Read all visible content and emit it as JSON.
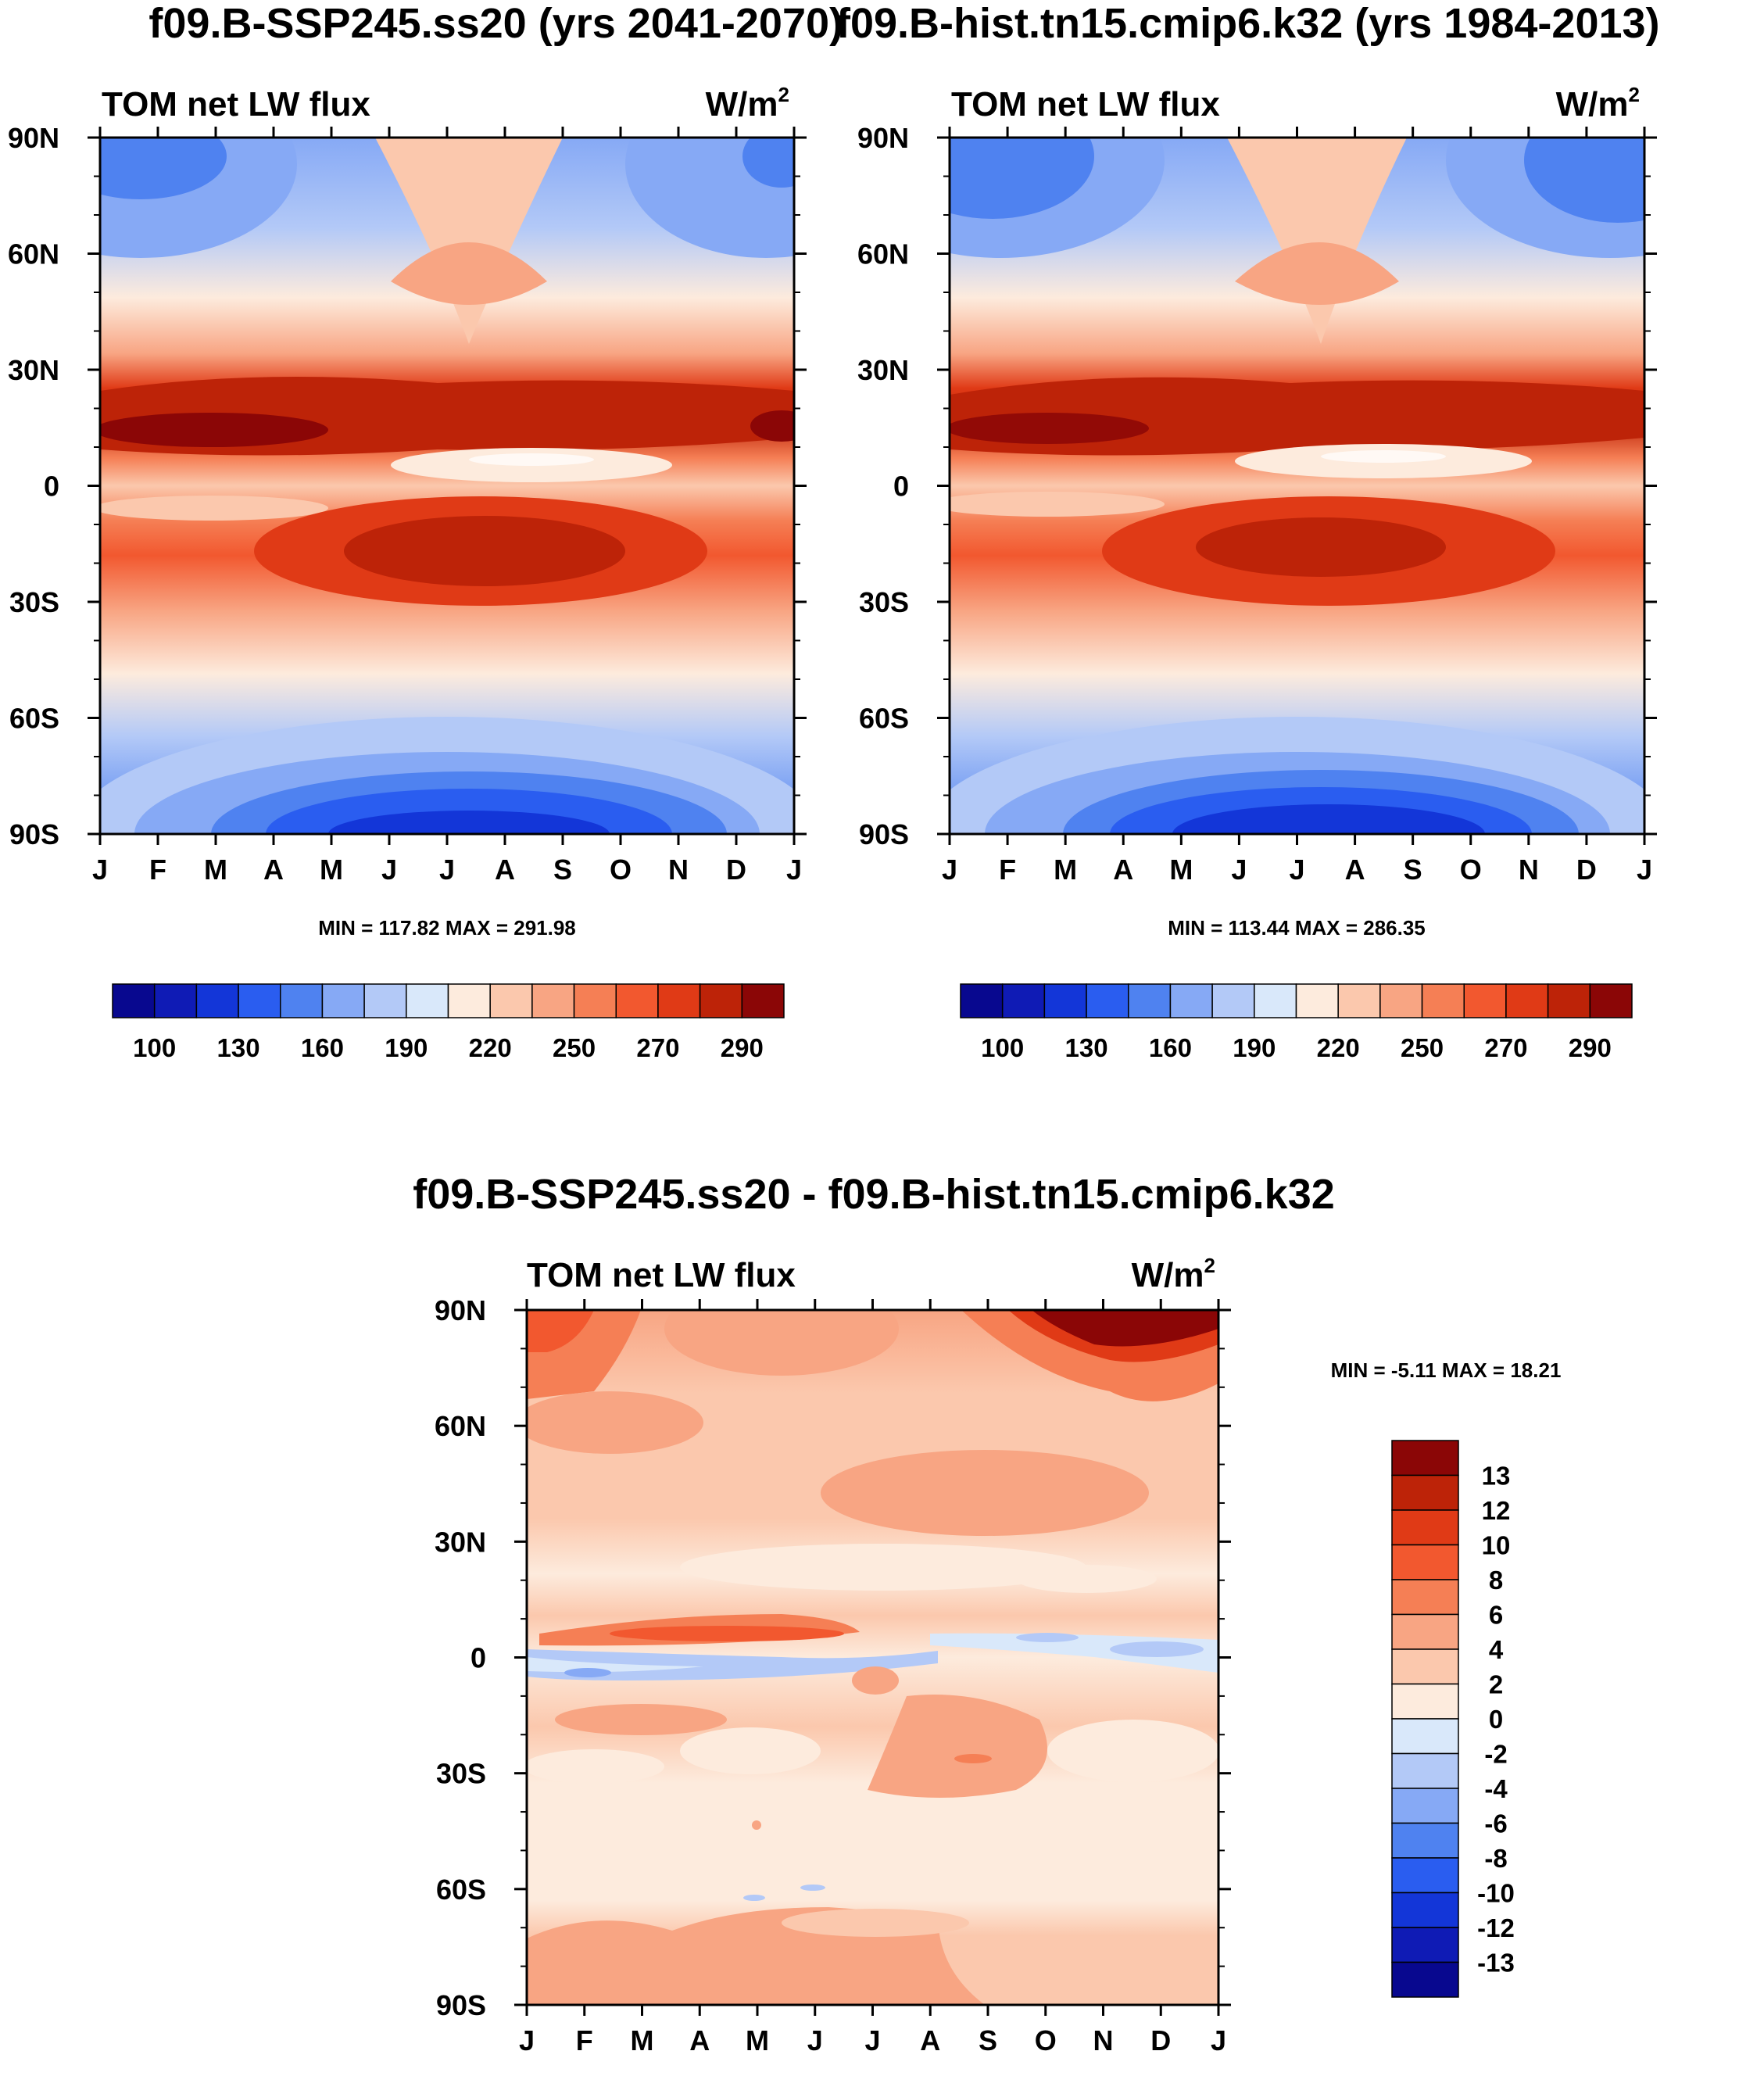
{
  "figure_titles": {
    "left": "f09.B-SSP245.ss20 (yrs 2041-2070)",
    "right": "f09.B-hist.tn15.cmip6.k32 (yrs 1984-2013)",
    "diff": "f09.B-SSP245.ss20 - f09.B-hist.tn15.cmip6.k32"
  },
  "chart_data": [
    {
      "id": "panel-ssp245",
      "type": "heatmap",
      "subtitle": "TOM net LW flux",
      "units": "W/m",
      "units_sup": "2",
      "stats": "MIN = 117.82 MAX = 291.98",
      "xlabel": "",
      "ylabel": "",
      "x_ticks": [
        "J",
        "F",
        "M",
        "A",
        "M",
        "J",
        "J",
        "A",
        "S",
        "O",
        "N",
        "D",
        "J"
      ],
      "y_ticks": [
        "90N",
        "60N",
        "30N",
        "0",
        "30S",
        "60S",
        "90S"
      ],
      "y_range_deg": [
        -90,
        90
      ],
      "x_range_months": [
        0,
        12
      ],
      "colorbar": {
        "orientation": "horizontal",
        "labels": [
          "100",
          "130",
          "160",
          "190",
          "220",
          "250",
          "270",
          "290"
        ],
        "colors": [
          "#08088f",
          "#0f1bb5",
          "#1336d8",
          "#2a5df0",
          "#4f82f0",
          "#86a9f5",
          "#b3c9f7",
          "#d9e8fa",
          "#fdebdd",
          "#fbc8ad",
          "#f8a583",
          "#f57f55",
          "#f2582f",
          "#e03a16",
          "#bd2308",
          "#8b0606"
        ]
      },
      "band_value_profile_jan": [
        {
          "lat": 90,
          "value": 170
        },
        {
          "lat": 75,
          "value": 185
        },
        {
          "lat": 60,
          "value": 200
        },
        {
          "lat": 45,
          "value": 228
        },
        {
          "lat": 30,
          "value": 262
        },
        {
          "lat": 17,
          "value": 285
        },
        {
          "lat": 5,
          "value": 255
        },
        {
          "lat": -5,
          "value": 248
        },
        {
          "lat": -15,
          "value": 262
        },
        {
          "lat": -30,
          "value": 268
        },
        {
          "lat": -45,
          "value": 240
        },
        {
          "lat": -60,
          "value": 215
        },
        {
          "lat": -75,
          "value": 190
        },
        {
          "lat": -90,
          "value": 165
        }
      ]
    },
    {
      "id": "panel-hist",
      "type": "heatmap",
      "subtitle": "TOM net LW flux",
      "units": "W/m",
      "units_sup": "2",
      "stats": "MIN = 113.44 MAX = 286.35",
      "xlabel": "",
      "ylabel": "",
      "x_ticks": [
        "J",
        "F",
        "M",
        "A",
        "M",
        "J",
        "J",
        "A",
        "S",
        "O",
        "N",
        "D",
        "J"
      ],
      "y_ticks": [
        "90N",
        "60N",
        "30N",
        "0",
        "30S",
        "60S",
        "90S"
      ],
      "y_range_deg": [
        -90,
        90
      ],
      "x_range_months": [
        0,
        12
      ],
      "colorbar": {
        "orientation": "horizontal",
        "labels": [
          "100",
          "130",
          "160",
          "190",
          "220",
          "250",
          "270",
          "290"
        ],
        "colors": [
          "#08088f",
          "#0f1bb5",
          "#1336d8",
          "#2a5df0",
          "#4f82f0",
          "#86a9f5",
          "#b3c9f7",
          "#d9e8fa",
          "#fdebdd",
          "#fbc8ad",
          "#f8a583",
          "#f57f55",
          "#f2582f",
          "#e03a16",
          "#bd2308",
          "#8b0606"
        ]
      }
    },
    {
      "id": "panel-diff",
      "type": "heatmap",
      "subtitle": "TOM net LW flux",
      "units": "W/m",
      "units_sup": "2",
      "stats": "MIN =  -5.11 MAX =  18.21",
      "xlabel": "",
      "ylabel": "",
      "x_ticks": [
        "J",
        "F",
        "M",
        "A",
        "M",
        "J",
        "J",
        "A",
        "S",
        "O",
        "N",
        "D",
        "J"
      ],
      "y_ticks": [
        "90N",
        "60N",
        "30N",
        "0",
        "30S",
        "60S",
        "90S"
      ],
      "y_range_deg": [
        -90,
        90
      ],
      "x_range_months": [
        0,
        12
      ],
      "colorbar": {
        "orientation": "vertical",
        "labels": [
          "13",
          "12",
          "10",
          "8",
          "6",
          "4",
          "2",
          "0",
          "-2",
          "-4",
          "-6",
          "-8",
          "-10",
          "-12",
          "-13"
        ],
        "colors": [
          "#8b0606",
          "#bd2308",
          "#e03a16",
          "#f2582f",
          "#f57f55",
          "#f8a583",
          "#fbc8ad",
          "#fdebdd",
          "#d9e8fa",
          "#b3c9f7",
          "#86a9f5",
          "#4f82f0",
          "#2a5df0",
          "#1336d8",
          "#0f1bb5",
          "#08088f"
        ]
      }
    }
  ]
}
